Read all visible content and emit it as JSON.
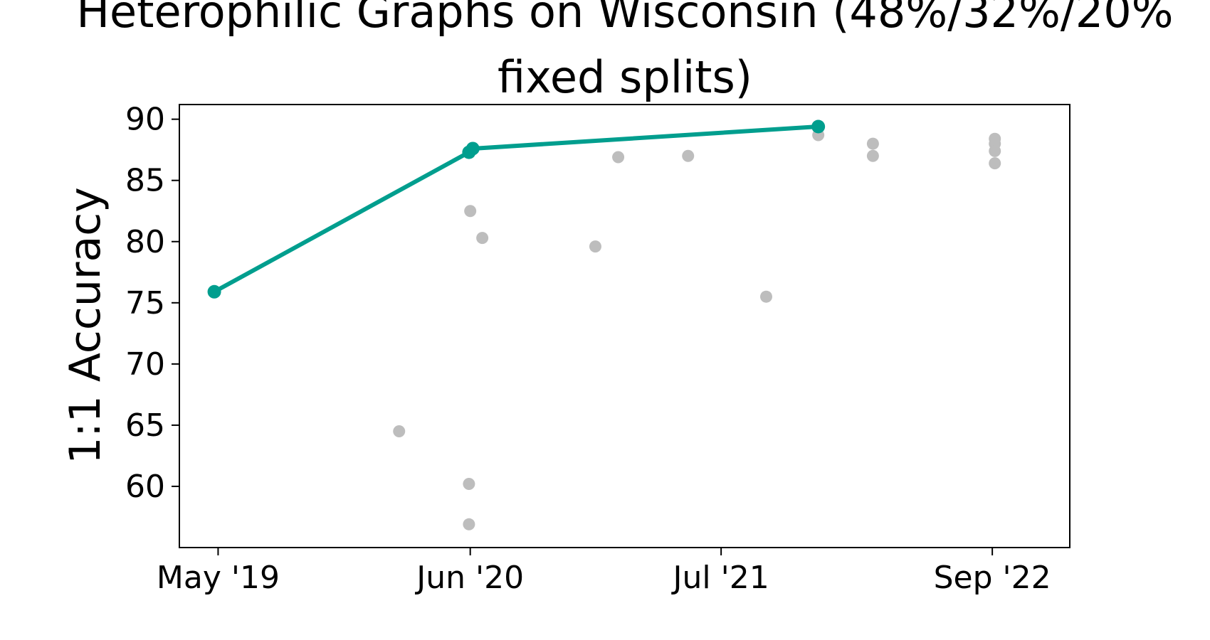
{
  "chart_data": {
    "type": "scatter",
    "title_lines": [
      "Heterophilic Graphs on Wisconsin (48%/32%/20%",
      "fixed splits)"
    ],
    "xlabel": "",
    "ylabel": "1:1 Accuracy",
    "xlim": [
      "2019-03-01",
      "2023-01-01"
    ],
    "ylim": [
      55.0,
      91.2
    ],
    "xticks": [
      {
        "date": "2019-05-01",
        "label": "May '19"
      },
      {
        "date": "2020-06-01",
        "label": "Jun '20"
      },
      {
        "date": "2021-07-01",
        "label": "Jul '21"
      },
      {
        "date": "2022-09-01",
        "label": "Sep '22"
      }
    ],
    "yticks": [
      60,
      65,
      70,
      75,
      80,
      85,
      90
    ],
    "grid": false,
    "series": [
      {
        "role": "state-of-the-art",
        "color": "#009e8e",
        "connected": true,
        "points": [
          {
            "date": "2019-04-25",
            "value": 75.9
          },
          {
            "date": "2020-05-30",
            "value": 87.3
          },
          {
            "date": "2020-06-05",
            "value": 87.6
          },
          {
            "date": "2021-12-01",
            "value": 89.4
          }
        ]
      },
      {
        "role": "other-results",
        "color": "#bdbdbd",
        "connected": false,
        "points": [
          {
            "date": "2020-02-10",
            "value": 64.5
          },
          {
            "date": "2020-05-30",
            "value": 60.2
          },
          {
            "date": "2020-05-30",
            "value": 56.9
          },
          {
            "date": "2020-06-01",
            "value": 82.5
          },
          {
            "date": "2020-06-20",
            "value": 80.3
          },
          {
            "date": "2020-12-15",
            "value": 79.6
          },
          {
            "date": "2021-01-20",
            "value": 86.9
          },
          {
            "date": "2021-05-10",
            "value": 87.0
          },
          {
            "date": "2021-09-10",
            "value": 75.5
          },
          {
            "date": "2021-12-01",
            "value": 88.7
          },
          {
            "date": "2022-02-25",
            "value": 88.0
          },
          {
            "date": "2022-02-25",
            "value": 87.0
          },
          {
            "date": "2022-09-05",
            "value": 88.4
          },
          {
            "date": "2022-09-05",
            "value": 88.0
          },
          {
            "date": "2022-09-05",
            "value": 87.4
          },
          {
            "date": "2022-09-05",
            "value": 86.4
          }
        ]
      }
    ]
  }
}
